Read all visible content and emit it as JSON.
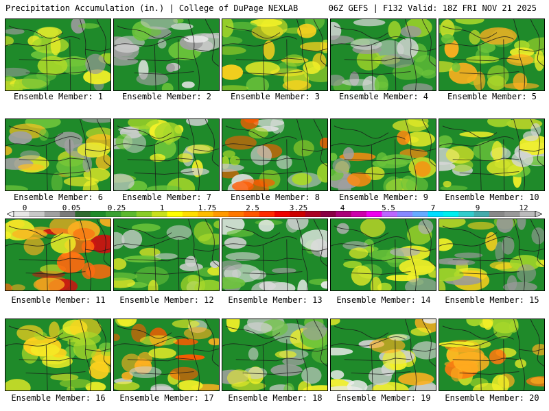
{
  "header": {
    "left": "Precipitation Accumulation (in.) | College of DuPage NEXLAB",
    "right": "06Z GEFS | F132 Valid: 18Z FRI NOV 21 2025"
  },
  "panels": [
    {
      "label": "Ensemble Member: 1"
    },
    {
      "label": "Ensemble Member: 2"
    },
    {
      "label": "Ensemble Member: 3"
    },
    {
      "label": "Ensemble Member: 4"
    },
    {
      "label": "Ensemble Member: 5"
    },
    {
      "label": "Ensemble Member: 6"
    },
    {
      "label": "Ensemble Member: 7"
    },
    {
      "label": "Ensemble Member: 8"
    },
    {
      "label": "Ensemble Member: 9"
    },
    {
      "label": "Ensemble Member: 10"
    },
    {
      "label": "Ensemble Member: 11"
    },
    {
      "label": "Ensemble Member: 12"
    },
    {
      "label": "Ensemble Member: 13"
    },
    {
      "label": "Ensemble Member: 14"
    },
    {
      "label": "Ensemble Member: 15"
    },
    {
      "label": "Ensemble Member: 16"
    },
    {
      "label": "Ensemble Member: 17"
    },
    {
      "label": "Ensemble Member: 18"
    },
    {
      "label": "Ensemble Member: 19"
    },
    {
      "label": "Ensemble Member: 20"
    }
  ],
  "colorbar": {
    "ticks": [
      "0",
      "0.05",
      "0.25",
      "1",
      "1.75",
      "2.5",
      "3.25",
      "4",
      "5.5",
      "7",
      "9",
      "12"
    ],
    "colors": [
      "#e6e6e6",
      "#c8c8c8",
      "#a0a0a0",
      "#7a7a7a",
      "#2f6b2f",
      "#1f8a2a",
      "#3aa032",
      "#5cb82e",
      "#8acc26",
      "#c8e01c",
      "#ffff00",
      "#ffdd00",
      "#ffbb00",
      "#ff9900",
      "#ff7700",
      "#ff5500",
      "#ff2a00",
      "#ee0000",
      "#cc0000",
      "#aa0022",
      "#880044",
      "#aa0077",
      "#cc00aa",
      "#ee00ee",
      "#bb66ff",
      "#8888ff",
      "#66aaff",
      "#00ddff",
      "#00eeee",
      "#33cccc",
      "#44aaaa",
      "#888888",
      "#999999",
      "#bbbbbb"
    ]
  }
}
